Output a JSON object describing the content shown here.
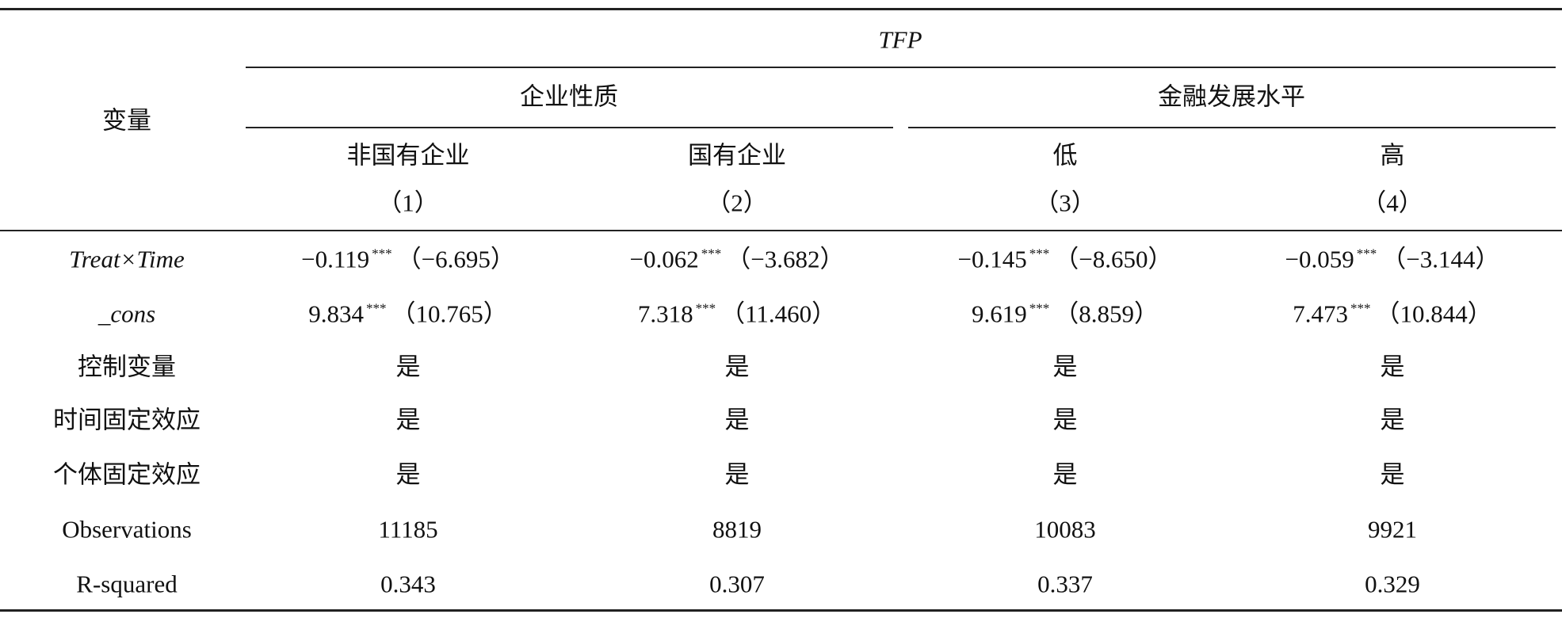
{
  "table": {
    "header": {
      "corner": "变量",
      "top": "TFP",
      "groups": [
        "企业性质",
        "金融发展水平"
      ],
      "columns": [
        "非国有企业",
        "国有企业",
        "低",
        "高"
      ],
      "numbers": [
        "（1）",
        "（2）",
        "（3）",
        "（4）"
      ]
    },
    "rows": [
      {
        "label": "Treat×Time",
        "cells": [
          {
            "coef": "−0.119",
            "stars": "***",
            "t": "（−6.695）"
          },
          {
            "coef": "−0.062",
            "stars": "***",
            "t": "（−3.682）"
          },
          {
            "coef": "−0.145",
            "stars": "***",
            "t": "（−8.650）"
          },
          {
            "coef": "−0.059",
            "stars": "***",
            "t": "（−3.144）"
          }
        ]
      },
      {
        "label": "_cons",
        "cells": [
          {
            "coef": "9.834",
            "stars": "***",
            "t": "（10.765）"
          },
          {
            "coef": "7.318",
            "stars": "***",
            "t": "（11.460）"
          },
          {
            "coef": "9.619",
            "stars": "***",
            "t": "（8.859）"
          },
          {
            "coef": "7.473",
            "stars": "***",
            "t": "（10.844）"
          }
        ]
      },
      {
        "label": "控制变量",
        "cells": [
          "是",
          "是",
          "是",
          "是"
        ]
      },
      {
        "label": "时间固定效应",
        "cells": [
          "是",
          "是",
          "是",
          "是"
        ]
      },
      {
        "label": "个体固定效应",
        "cells": [
          "是",
          "是",
          "是",
          "是"
        ]
      },
      {
        "label": "Observations",
        "cells": [
          "11185",
          "8819",
          "10083",
          "9921"
        ]
      },
      {
        "label": "R-squared",
        "cells": [
          "0.343",
          "0.307",
          "0.337",
          "0.329"
        ]
      }
    ]
  }
}
